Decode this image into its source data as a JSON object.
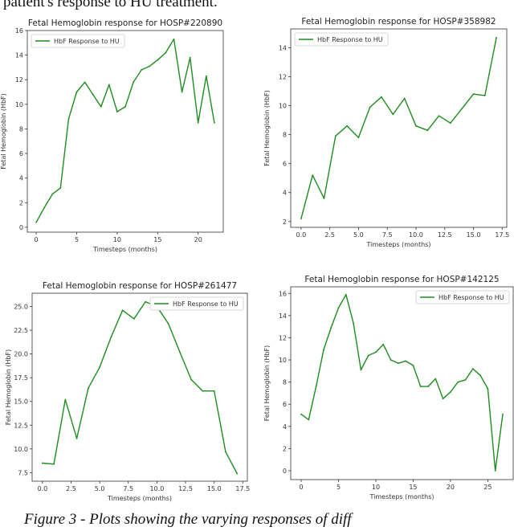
{
  "captions": {
    "top": "patient's response to HU treatment.",
    "bottom": "Figure 3 - Plots showing the varying responses of diff"
  },
  "colors": {
    "line": "#1e8c1e",
    "axis": "#333333",
    "legend_border": "#cccccc"
  },
  "chart_data": [
    {
      "type": "line",
      "title": "Fetal Hemoglobin response for HOSP#220890",
      "xlabel": "Timesteps (months)",
      "ylabel": "Fetal Hemoglobin (HbF)",
      "legend": "top-left",
      "grid": false,
      "xlim": [
        -1.1,
        23.1
      ],
      "ylim": [
        -0.4,
        16
      ],
      "xticks": [
        0,
        5,
        10,
        15,
        20
      ],
      "yticks": [
        0,
        2,
        4,
        6,
        8,
        10,
        12,
        14,
        16
      ],
      "series": [
        {
          "name": "HbF Response to HU",
          "x": [
            0,
            1,
            2,
            3,
            4,
            5,
            6,
            7,
            8,
            9,
            10,
            11,
            12,
            13,
            14,
            15,
            16,
            17,
            18,
            19,
            20,
            21,
            22
          ],
          "y": [
            0.4,
            1.6,
            2.7,
            3.2,
            8.8,
            11.0,
            11.8,
            10.8,
            9.8,
            11.6,
            9.4,
            9.8,
            11.8,
            12.8,
            13.1,
            13.6,
            14.2,
            15.3,
            11.0,
            13.8,
            8.5,
            12.3,
            8.5
          ]
        }
      ]
    },
    {
      "type": "line",
      "title": "Fetal Hemoglobin response for HOSP#358982",
      "xlabel": "Timesteps (months)",
      "ylabel": "Fetal Hemoglobin (HbF)",
      "legend": "top-left",
      "grid": false,
      "xlim": [
        -0.9,
        17.9
      ],
      "ylim": [
        1.6,
        15.3
      ],
      "xticks": [
        "0.0",
        "2.5",
        "5.0",
        "7.5",
        "10.0",
        "12.5",
        "15.0",
        "17.5"
      ],
      "yticks": [
        2,
        4,
        6,
        8,
        10,
        12,
        14
      ],
      "series": [
        {
          "name": "HbF Response to HU",
          "x": [
            0,
            1,
            2,
            3,
            4,
            5,
            6,
            7,
            8,
            9,
            10,
            11,
            12,
            13,
            14,
            15,
            16,
            17
          ],
          "y": [
            2.2,
            5.2,
            3.6,
            7.9,
            8.6,
            7.8,
            9.9,
            10.6,
            9.4,
            10.5,
            8.6,
            8.3,
            9.3,
            8.8,
            9.8,
            10.8,
            10.7,
            14.7
          ]
        }
      ]
    },
    {
      "type": "line",
      "title": "Fetal Hemoglobin response for HOSP#261477",
      "xlabel": "Timesteps (months)",
      "ylabel": "Fetal Hemoglobin (HbF)",
      "legend": "top-right",
      "grid": false,
      "xlim": [
        -0.9,
        17.9
      ],
      "ylim": [
        6.6,
        26.4
      ],
      "xticks": [
        "0.0",
        "2.5",
        "5.0",
        "7.5",
        "10.0",
        "12.5",
        "15.0",
        "17.5"
      ],
      "yticks": [
        "7.5",
        "10.0",
        "12.5",
        "15.0",
        "17.5",
        "20.0",
        "22.5",
        "25.0"
      ],
      "series": [
        {
          "name": "HbF Response to HU",
          "x": [
            0,
            1,
            2,
            3,
            4,
            5,
            6,
            7,
            8,
            9,
            10,
            11,
            12,
            13,
            14,
            15,
            16,
            17
          ],
          "y": [
            8.5,
            8.4,
            15.2,
            11.1,
            16.4,
            18.6,
            21.8,
            24.6,
            23.7,
            25.5,
            25.0,
            23.2,
            20.2,
            17.3,
            16.1,
            16.1,
            9.7,
            7.4
          ]
        }
      ]
    },
    {
      "type": "line",
      "title": "Fetal Hemoglobin response for HOSP#142125",
      "xlabel": "Timesteps (months)",
      "ylabel": "Fetal Hemoglobin (HbF)",
      "legend": "top-right",
      "grid": false,
      "xlim": [
        -1.4,
        28.4
      ],
      "ylim": [
        -0.8,
        16.6
      ],
      "xticks": [
        0,
        5,
        10,
        15,
        20,
        25
      ],
      "yticks": [
        0,
        2,
        4,
        6,
        8,
        10,
        12,
        14,
        16
      ],
      "series": [
        {
          "name": "HbF Response to HU",
          "x": [
            0,
            1,
            2,
            3,
            4,
            5,
            6,
            7,
            8,
            9,
            10,
            11,
            12,
            13,
            14,
            15,
            16,
            17,
            18,
            19,
            20,
            21,
            22,
            23,
            24,
            25,
            26,
            27
          ],
          "y": [
            5.1,
            4.6,
            7.6,
            10.9,
            12.9,
            14.7,
            15.9,
            13.3,
            9.1,
            10.4,
            10.7,
            11.4,
            10.0,
            9.7,
            9.9,
            9.5,
            7.6,
            7.6,
            8.3,
            6.5,
            7.1,
            8.0,
            8.2,
            9.2,
            8.6,
            7.4,
            0.0,
            5.1
          ]
        }
      ]
    }
  ]
}
